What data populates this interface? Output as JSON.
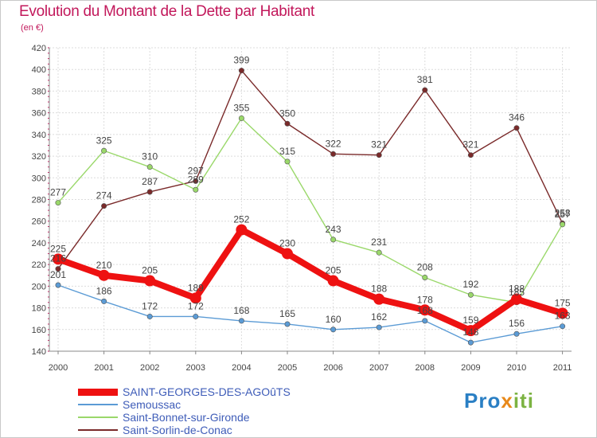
{
  "chart_data": {
    "type": "line",
    "title": "Evolution du Montant de la Dette par Habitant",
    "subtitle": "(en €)",
    "x": [
      "2000",
      "2001",
      "2002",
      "2003",
      "2004",
      "2005",
      "2006",
      "2007",
      "2008",
      "2009",
      "2010",
      "2011"
    ],
    "ylim": [
      140,
      420
    ],
    "yticks": [
      140,
      160,
      180,
      200,
      220,
      240,
      260,
      280,
      300,
      320,
      340,
      360,
      380,
      400,
      420
    ],
    "grid": true,
    "legend_position": "bottom-left",
    "series": [
      {
        "name": "SAINT-GEORGES-DES-AGOûTS",
        "color": "#ee1111",
        "values": [
          225,
          210,
          205,
          189,
          252,
          230,
          205,
          188,
          178,
          159,
          188,
          175
        ]
      },
      {
        "name": "Semoussac",
        "color": "#5b9bd5",
        "values": [
          201,
          186,
          172,
          172,
          168,
          165,
          160,
          162,
          168,
          148,
          156,
          163
        ]
      },
      {
        "name": "Saint-Bonnet-sur-Gironde",
        "color": "#9ad86a",
        "values": [
          277,
          325,
          310,
          289,
          355,
          315,
          243,
          231,
          208,
          192,
          185,
          257
        ]
      },
      {
        "name": "Saint-Sorlin-de-Conac",
        "color": "#7a2a2a",
        "values": [
          216,
          274,
          287,
          297,
          399,
          350,
          322,
          321,
          381,
          321,
          346,
          258
        ]
      }
    ]
  },
  "logo": {
    "part1": "Pro",
    "part2": "x",
    "part3": "iti"
  }
}
